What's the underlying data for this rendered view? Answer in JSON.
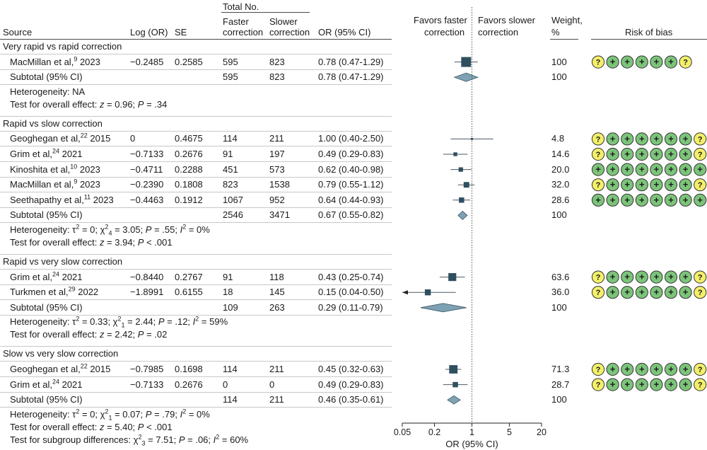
{
  "header": {
    "source": "Source",
    "logor": "Log (OR)",
    "se": "SE",
    "total_no": "Total No.",
    "faster1": "Faster",
    "faster2": "correction",
    "slower1": "Slower",
    "slower2": "correction",
    "or": "OR (95% CI)",
    "favors_faster1": "Favors faster",
    "favors_faster2": "correction",
    "favors_slower1": "Favors slower",
    "favors_slower2": "correction",
    "weight1": "Weight,",
    "weight2": "%",
    "rob": "Risk of bias"
  },
  "colors": {
    "marker": "#2f4f5f",
    "diamond": "#7ea2b3",
    "rob_low": "#7cc47a",
    "rob_unclear": "#f3ef6a",
    "ci_line": "#4a5a66"
  },
  "chart_data": {
    "type": "forest",
    "x_axis": {
      "label": "OR (95% CI)",
      "scale": "log",
      "ticks": [
        0.05,
        0.2,
        1,
        5,
        20
      ],
      "tick_labels": [
        "0.05",
        "0.2",
        "1",
        "5",
        "20"
      ],
      "reference": 1
    },
    "groups": [
      {
        "title": "Very rapid vs rapid correction",
        "studies": [
          {
            "name": "MacMillan et al,",
            "ref": "9",
            "year": "2023",
            "logor": "−0.2485",
            "se": "0.2585",
            "faster": "595",
            "slower": "823",
            "or_text": "0.78 (0.47-1.29)",
            "or": 0.78,
            "lo": 0.47,
            "hi": 1.29,
            "weight": "100",
            "rob": [
              "?",
              "+",
              "+",
              "+",
              "+",
              "+",
              "?"
            ]
          }
        ],
        "subtotal": {
          "label": "Subtotal (95% CI)",
          "faster": "595",
          "slower": "823",
          "or_text": "0.78 (0.47-1.29)",
          "or": 0.78,
          "lo": 0.47,
          "hi": 1.29,
          "weight": "100"
        },
        "notes": [
          "Heterogeneity: NA",
          "Test for overall effect: z = 0.96; P = .34"
        ]
      },
      {
        "title": "Rapid vs slow correction",
        "studies": [
          {
            "name": "Geoghegan et al,",
            "ref": "22",
            "year": "2015",
            "logor": "0",
            "se": "0.4675",
            "faster": "114",
            "slower": "211",
            "or_text": "1.00 (0.40-2.50)",
            "or": 1.0,
            "lo": 0.4,
            "hi": 2.5,
            "weight": "4.8",
            "rob": [
              "?",
              "+",
              "+",
              "+",
              "+",
              "+",
              "+",
              "?"
            ]
          },
          {
            "name": "Grim et al,",
            "ref": "24",
            "year": "2021",
            "logor": "−0.7133",
            "se": "0.2676",
            "faster": "91",
            "slower": "197",
            "or_text": "0.49 (0.29-0.83)",
            "or": 0.49,
            "lo": 0.29,
            "hi": 0.83,
            "weight": "14.6",
            "rob": [
              "?",
              "+",
              "+",
              "+",
              "+",
              "+",
              "+",
              "?"
            ]
          },
          {
            "name": "Kinoshita et al,",
            "ref": "10",
            "year": "2023",
            "logor": "−0.4711",
            "se": "0.2288",
            "faster": "451",
            "slower": "573",
            "or_text": "0.62 (0.40-0.98)",
            "or": 0.62,
            "lo": 0.4,
            "hi": 0.98,
            "weight": "20.0",
            "rob": [
              "+",
              "+",
              "+",
              "+",
              "+",
              "+",
              "+",
              "+"
            ]
          },
          {
            "name": "MacMillan et al,",
            "ref": "9",
            "year": "2023",
            "logor": "−0.2390",
            "se": "0.1808",
            "faster": "823",
            "slower": "1538",
            "or_text": "0.79 (0.55-1.12)",
            "or": 0.79,
            "lo": 0.55,
            "hi": 1.12,
            "weight": "32.0",
            "rob": [
              "?",
              "+",
              "+",
              "+",
              "+",
              "+",
              "+",
              "?"
            ]
          },
          {
            "name": "Seethapathy et al,",
            "ref": "11",
            "year": "2023",
            "logor": "−0.4463",
            "se": "0.1912",
            "faster": "1067",
            "slower": "952",
            "or_text": "0.64 (0.44-0.93)",
            "or": 0.64,
            "lo": 0.44,
            "hi": 0.93,
            "weight": "28.6",
            "rob": [
              "+",
              "+",
              "+",
              "+",
              "+",
              "+",
              "+",
              "+"
            ]
          }
        ],
        "subtotal": {
          "label": "Subtotal (95% CI)",
          "faster": "2546",
          "slower": "3471",
          "or_text": "0.67 (0.55-0.82)",
          "or": 0.67,
          "lo": 0.55,
          "hi": 0.82,
          "weight": "100"
        },
        "notes": [
          "Heterogeneity: τ2 = 0; χ24 = 3.05; P = .55; I2 = 0%",
          "Test for overall effect: z = 3.94; P < .001"
        ]
      },
      {
        "title": "Rapid vs very slow correction",
        "studies": [
          {
            "name": "Grim et al,",
            "ref": "24",
            "year": "2021",
            "logor": "−0.8440",
            "se": "0.2767",
            "faster": "91",
            "slower": "118",
            "or_text": "0.43 (0.25-0.74)",
            "or": 0.43,
            "lo": 0.25,
            "hi": 0.74,
            "weight": "63.6",
            "rob": [
              "?",
              "+",
              "+",
              "+",
              "+",
              "+",
              "+",
              "?"
            ]
          },
          {
            "name": "Turkmen et al,",
            "ref": "29",
            "year": "2022",
            "logor": "−1.8991",
            "se": "0.6155",
            "faster": "18",
            "slower": "145",
            "or_text": "0.15 (0.04-0.50)",
            "or": 0.15,
            "lo": 0.04,
            "hi": 0.5,
            "weight": "36.0",
            "rob": [
              "?",
              "+",
              "+",
              "+",
              "+",
              "+",
              "+",
              "?"
            ]
          }
        ],
        "subtotal": {
          "label": "Subtotal (95% CI)",
          "faster": "109",
          "slower": "263",
          "or_text": "0.29 (0.11-0.79)",
          "or": 0.29,
          "lo": 0.11,
          "hi": 0.79,
          "weight": "100"
        },
        "notes": [
          "Heterogeneity: τ2 = 0.33; χ21 = 2.44; P = .12; I2 = 59%",
          "Test for overall effect: z = 2.42; P = .02"
        ]
      },
      {
        "title": "Slow vs very slow correction",
        "studies": [
          {
            "name": "Geoghegan et al,",
            "ref": "22",
            "year": "2015",
            "logor": "−0.7985",
            "se": "0.1698",
            "faster": "114",
            "slower": "211",
            "or_text": "0.45 (0.32-0.63)",
            "or": 0.45,
            "lo": 0.32,
            "hi": 0.63,
            "weight": "71.3",
            "rob": [
              "?",
              "+",
              "+",
              "+",
              "+",
              "+",
              "+",
              "?"
            ]
          },
          {
            "name": "Grim et al,",
            "ref": "24",
            "year": "2021",
            "logor": "−0.7133",
            "se": "0.2676",
            "faster": "0",
            "slower": "0",
            "or_text": "0.49 (0.29-0.83)",
            "or": 0.49,
            "lo": 0.29,
            "hi": 0.83,
            "weight": "28.7",
            "rob": [
              "?",
              "+",
              "+",
              "+",
              "+",
              "+",
              "+",
              "?"
            ]
          }
        ],
        "subtotal": {
          "label": "Subtotal (95% CI)",
          "faster": "114",
          "slower": "211",
          "or_text": "0.46 (0.35-0.61)",
          "or": 0.46,
          "lo": 0.35,
          "hi": 0.61,
          "weight": "100"
        },
        "notes": [
          "Heterogeneity: τ2 = 0; χ21 = 0.07; P = .79; I2 = 0%",
          "Test for overall effect: z = 5.40; P < .001",
          "Test for subgroup differences: χ23 = 7.51; P = .06; I2 = 60%"
        ]
      }
    ]
  }
}
